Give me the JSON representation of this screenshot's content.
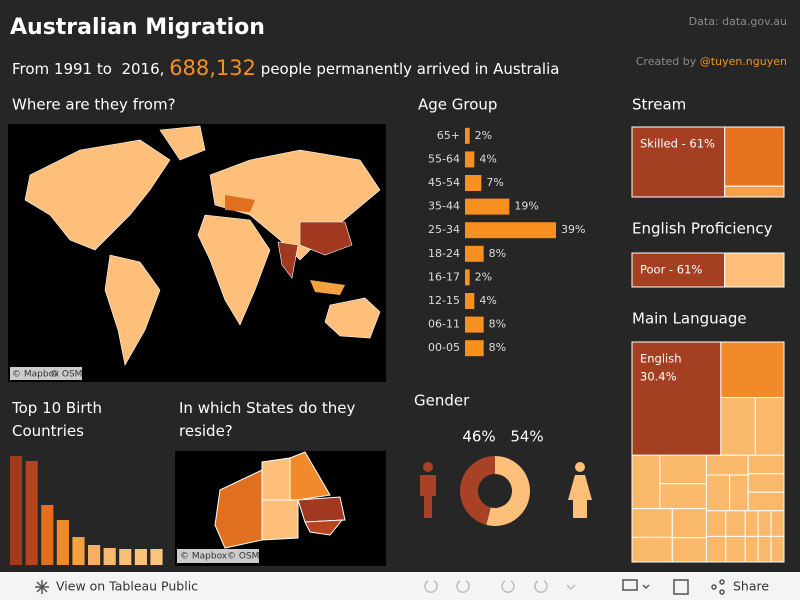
{
  "header": {
    "title": "Australian Migration",
    "source": "Data: data.gov.au",
    "credit_prefix": "Created by ",
    "credit_author": "@tuyen.nguyen",
    "subtitle_start": "From 1991 to  2016, ",
    "subtitle_number": "688,132",
    "subtitle_end": " people permanently arrived in Australia"
  },
  "sections": {
    "world_map": "Where are they from?",
    "states_map": "In which States do they reside?",
    "map_credit_1": "© Mapbox",
    "map_credit_2": "© OSM"
  },
  "chart_data": [
    {
      "type": "hbar",
      "title": "Age Group",
      "categories": [
        "65+",
        "55-64",
        "45-54",
        "35-44",
        "25-34",
        "18-24",
        "16-17",
        "12-15",
        "06-11",
        "00-05"
      ],
      "values": [
        2,
        4,
        7,
        19,
        39,
        8,
        2,
        4,
        8,
        8
      ],
      "value_labels": [
        "2%",
        "4%",
        "7%",
        "19%",
        "39%",
        "8%",
        "2%",
        "4%",
        "8%",
        "8%"
      ],
      "color": "#f7901e"
    },
    {
      "type": "bar",
      "title": "Top 10 Birth Countries",
      "categories": [
        null,
        null,
        null,
        null,
        null,
        null,
        null,
        null,
        null,
        null
      ],
      "values": [
        109,
        104,
        60,
        45,
        28,
        20,
        17,
        16,
        16,
        16
      ],
      "colors": [
        "#a0391f",
        "#b5441f",
        "#e0701f",
        "#f08a2a",
        "#f6a040",
        "#f8b060",
        "#f9b96a",
        "#fabf74",
        "#fbc27a",
        "#fbc47e"
      ]
    },
    {
      "type": "donut",
      "title": "Gender",
      "categories": [
        null,
        null
      ],
      "values": [
        46,
        54
      ],
      "value_labels": [
        "46%",
        "54%"
      ],
      "colors": [
        "#a84226",
        "#fdbf7a"
      ]
    },
    {
      "type": "treemap",
      "title": "Stream",
      "labels": [
        "Skilled - 61%",
        null,
        null
      ],
      "values": [
        61,
        33,
        6
      ],
      "colors": [
        "#a53f22",
        "#e8731f",
        "#f6a04a"
      ]
    },
    {
      "type": "treemap",
      "title": "English Proficiency",
      "labels": [
        "Poor - 61%",
        null
      ],
      "values": [
        61,
        39
      ],
      "colors": [
        "#a53f22",
        "#fdbf7a"
      ]
    },
    {
      "type": "treemap",
      "title": "Main Language",
      "labels": [
        "English",
        null,
        null,
        null,
        null,
        null,
        null,
        null,
        null,
        null,
        null,
        null,
        null,
        null,
        null,
        null,
        null,
        null,
        null,
        null,
        null,
        null,
        null,
        null,
        null,
        null,
        null
      ],
      "value_labels": [
        "30.4%",
        null,
        null,
        null,
        null,
        null,
        null,
        null,
        null,
        null,
        null,
        null,
        null,
        null,
        null,
        null,
        null,
        null,
        null,
        null,
        null,
        null,
        null,
        null,
        null,
        null,
        null
      ],
      "values": [
        30.4,
        10.6,
        6,
        5,
        4.5,
        4,
        3.5,
        3.5,
        3,
        3,
        2.5,
        2.5,
        2.5,
        2,
        2,
        2,
        2,
        1.5,
        1.5,
        1.5,
        1.5,
        1,
        1,
        1,
        1,
        1,
        1
      ],
      "colors": [
        "#a53f22",
        "#f28a2a"
      ],
      "color": "#f9b86a"
    }
  ],
  "toolbar": {
    "view": "View on Tableau Public",
    "share": "Share"
  }
}
